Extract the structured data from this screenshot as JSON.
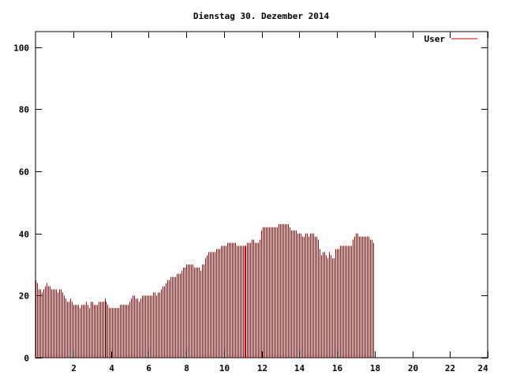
{
  "chart_data": {
    "type": "bar",
    "title": "Dienstag 30. Dezember 2014",
    "xlabel": "",
    "ylabel": "",
    "xlim": [
      0,
      24
    ],
    "ylim": [
      0,
      105
    ],
    "x_ticks": [
      2,
      4,
      6,
      8,
      10,
      12,
      14,
      16,
      18,
      20,
      22,
      24
    ],
    "y_ticks": [
      0,
      20,
      40,
      60,
      80,
      100
    ],
    "grid": false,
    "legend": "top-right",
    "colors": {
      "series": "#cc0000",
      "axis": "#000000",
      "background": "#ffffff"
    },
    "series": [
      {
        "name": "User",
        "x_start": 0,
        "x_step": 0.0833,
        "values": [
          25,
          24,
          22,
          22,
          21,
          22,
          23,
          24,
          23,
          23,
          22,
          22,
          22,
          22,
          21,
          22,
          22,
          21,
          20,
          19,
          18,
          18,
          19,
          18,
          17,
          17,
          17,
          17,
          16,
          17,
          17,
          17,
          18,
          17,
          16,
          18,
          18,
          17,
          17,
          17,
          18,
          18,
          18,
          18,
          19,
          18,
          17,
          16,
          16,
          16,
          16,
          16,
          16,
          16,
          17,
          17,
          17,
          17,
          17,
          17,
          18,
          19,
          20,
          20,
          19,
          19,
          18,
          19,
          20,
          20,
          20,
          20,
          20,
          20,
          20,
          21,
          21,
          20,
          21,
          21,
          22,
          23,
          23,
          24,
          25,
          25,
          26,
          26,
          26,
          26,
          27,
          27,
          27,
          28,
          29,
          29,
          30,
          30,
          30,
          30,
          30,
          29,
          29,
          29,
          29,
          28,
          30,
          30,
          32,
          33,
          34,
          34,
          34,
          34,
          34,
          35,
          35,
          35,
          36,
          36,
          36,
          36,
          37,
          37,
          37,
          37,
          37,
          37,
          36,
          36,
          36,
          36,
          36,
          36,
          36,
          37,
          37,
          37,
          38,
          38,
          37,
          37,
          37,
          38,
          41,
          42,
          42,
          42,
          42,
          42,
          42,
          42,
          42,
          42,
          42,
          43,
          43,
          43,
          43,
          43,
          43,
          43,
          42,
          41,
          41,
          41,
          41,
          40,
          40,
          40,
          39,
          39,
          40,
          40,
          39,
          40,
          40,
          40,
          39,
          39,
          38,
          35,
          33,
          34,
          34,
          33,
          32,
          34,
          33,
          32,
          32,
          35,
          35,
          35,
          36,
          36,
          36,
          36,
          36,
          36,
          36,
          36,
          38,
          39,
          40,
          40,
          39,
          39,
          39,
          39,
          39,
          39,
          39,
          38,
          38,
          37
        ]
      }
    ]
  }
}
